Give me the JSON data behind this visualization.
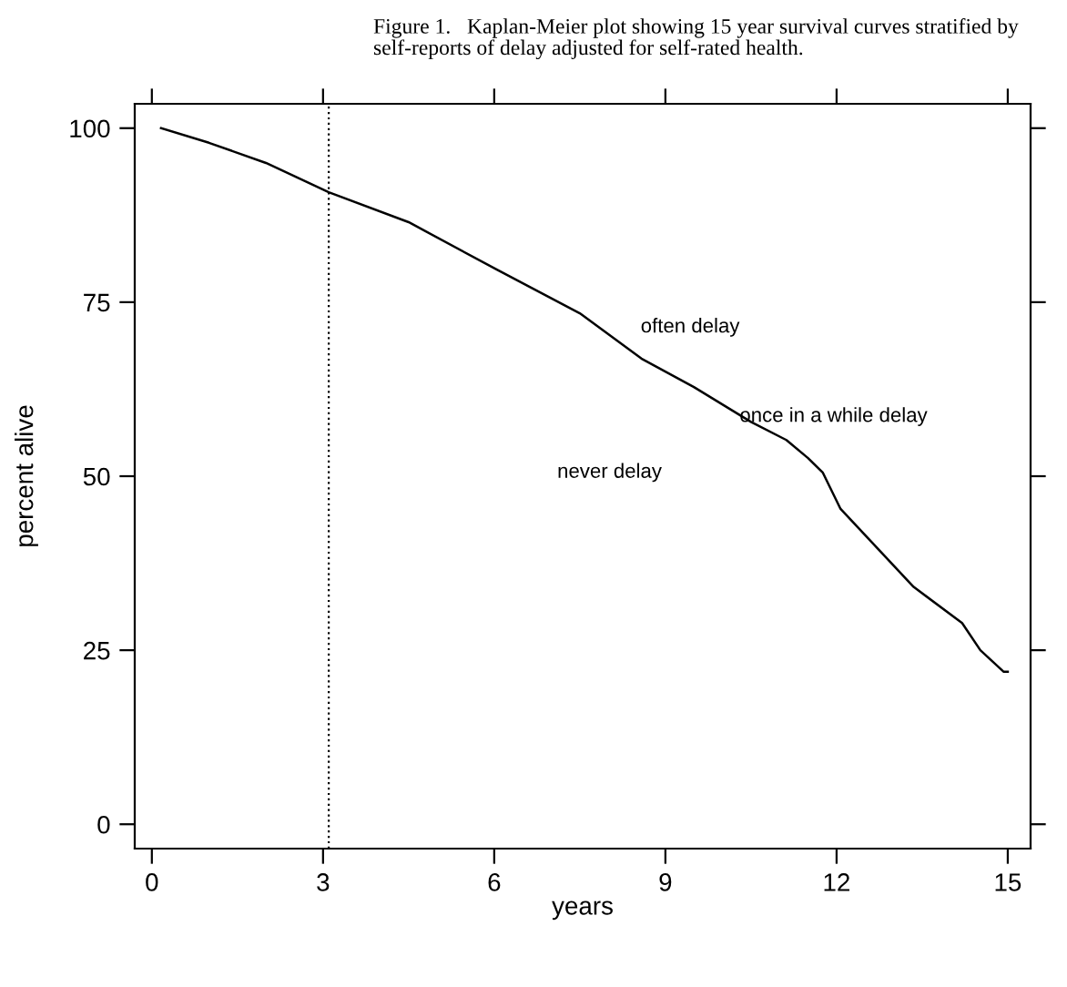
{
  "chart_data": {
    "type": "line",
    "title": "Figure 1.   Kaplan-Meier plot showing 15 year survival curves stratified by\nself-reports of delay adjusted for self-rated health.",
    "xlabel": "years",
    "ylabel": "percent alive",
    "x": [
      0.16,
      1,
      2,
      3.1,
      4.5,
      6.04,
      7.5,
      8.58,
      9.5,
      10.5,
      11.12,
      11.5,
      11.76,
      12.07,
      13.35,
      14.2,
      14.52,
      14.93,
      15
    ],
    "series": [
      {
        "color": "#000000",
        "values": [
          100,
          97.9,
          95,
          90.8,
          86.5,
          79.7,
          73.4,
          66.9,
          62.8,
          57.8,
          55.2,
          52.6,
          50.5,
          45.3,
          34.1,
          28.9,
          25,
          21.9,
          21.9
        ]
      }
    ],
    "xlim": [
      -0.3,
      15.4
    ],
    "ylim": [
      -3.5,
      103.5
    ],
    "xticks": [
      0,
      3,
      6,
      9,
      12,
      15
    ],
    "yticks": [
      0,
      25,
      50,
      75,
      100
    ],
    "ref_lines": [
      {
        "axis": "x",
        "value": 3.1,
        "color": "#000000",
        "line_style": "dotted"
      }
    ],
    "annotations": [
      "often delay",
      "once in a while delay",
      "never delay"
    ],
    "grid": false,
    "legend": false
  }
}
